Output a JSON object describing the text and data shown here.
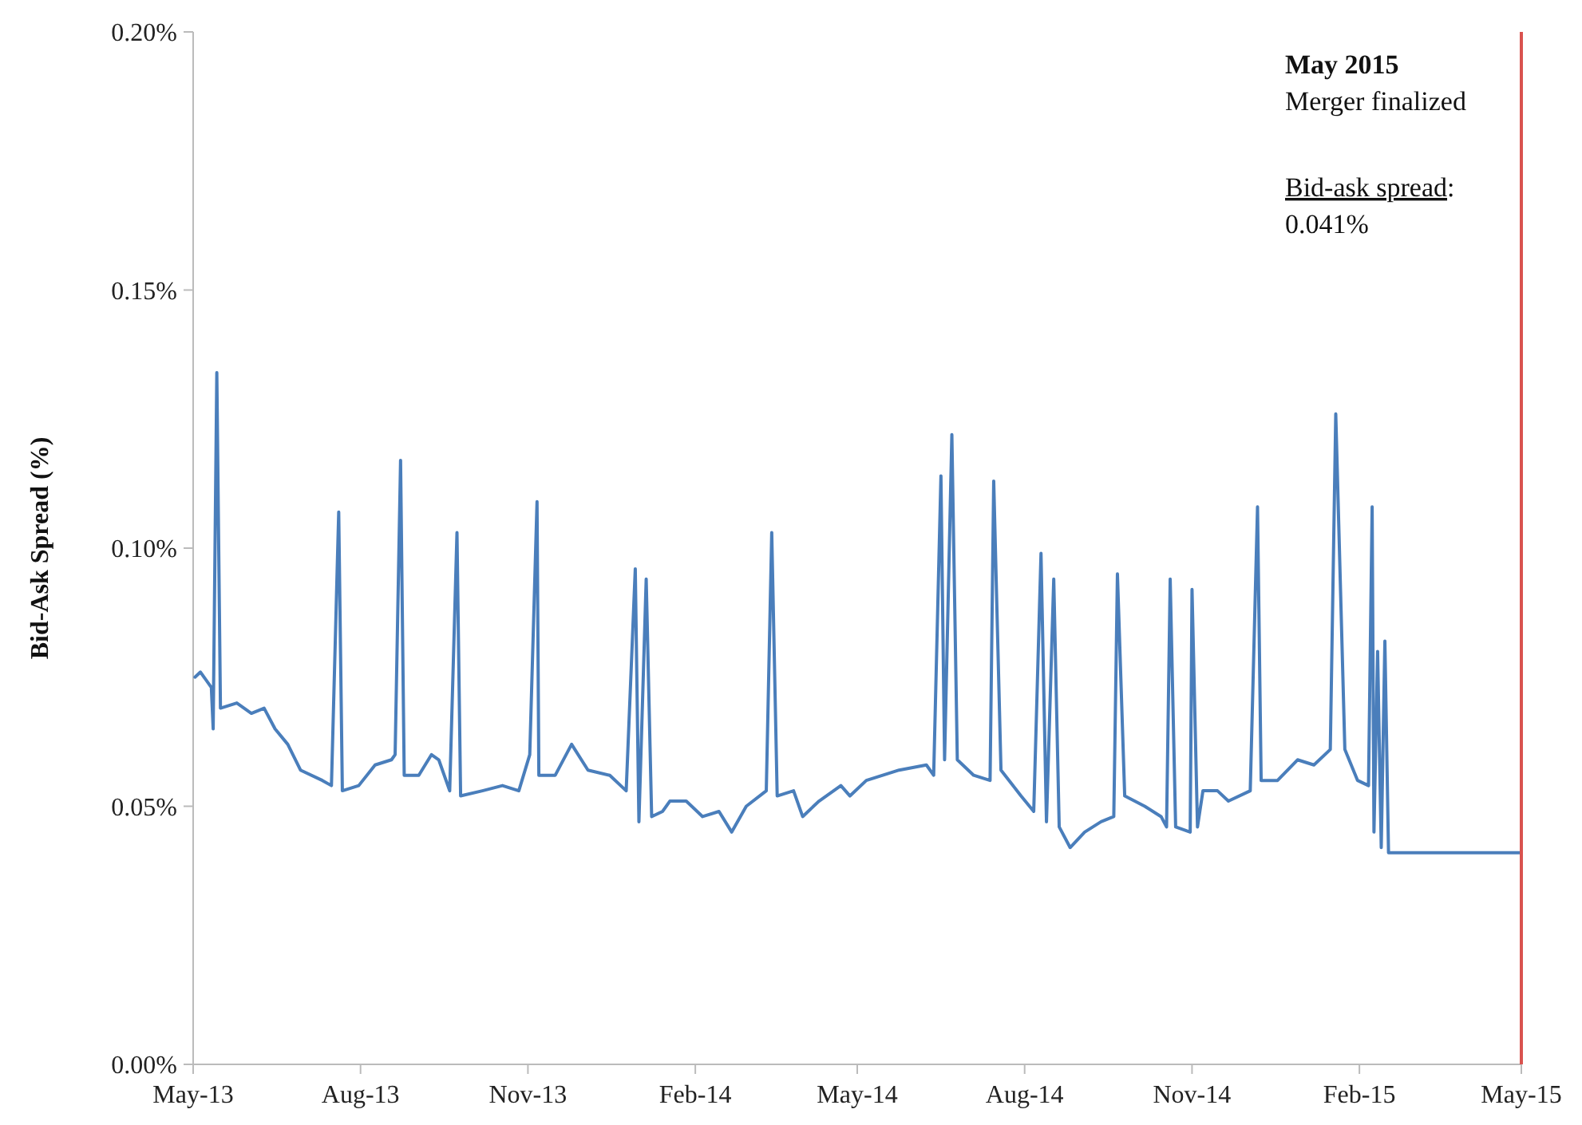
{
  "chart_data": {
    "type": "line",
    "ylabel": "Bid-Ask Spread (%)",
    "x": [
      "2013-05-02",
      "2013-05-05",
      "2013-05-11",
      "2013-05-12",
      "2013-05-14",
      "2013-05-16",
      "2013-05-25",
      "2013-06-02",
      "2013-06-09",
      "2013-06-15",
      "2013-06-22",
      "2013-06-29",
      "2013-07-11",
      "2013-07-16",
      "2013-07-20",
      "2013-07-22",
      "2013-07-31",
      "2013-08-09",
      "2013-08-18",
      "2013-08-20",
      "2013-08-23",
      "2013-08-25",
      "2013-09-02",
      "2013-09-09",
      "2013-09-13",
      "2013-09-19",
      "2013-09-23",
      "2013-09-25",
      "2013-10-07",
      "2013-10-18",
      "2013-10-27",
      "2013-11-02",
      "2013-11-06",
      "2013-11-07",
      "2013-11-16",
      "2013-11-25",
      "2013-12-04",
      "2013-12-16",
      "2013-12-25",
      "2013-12-30",
      "2014-01-01",
      "2014-01-05",
      "2014-01-08",
      "2014-01-14",
      "2014-01-18",
      "2014-01-27",
      "2014-02-05",
      "2014-02-14",
      "2014-02-21",
      "2014-03-01",
      "2014-03-12",
      "2014-03-15",
      "2014-03-18",
      "2014-03-27",
      "2014-04-01",
      "2014-04-10",
      "2014-04-22",
      "2014-04-27",
      "2014-05-06",
      "2014-05-15",
      "2014-05-24",
      "2014-06-08",
      "2014-06-12",
      "2014-06-16",
      "2014-06-18",
      "2014-06-22",
      "2014-06-25",
      "2014-07-04",
      "2014-07-13",
      "2014-07-15",
      "2014-07-19",
      "2014-07-30",
      "2014-08-06",
      "2014-08-10",
      "2014-08-13",
      "2014-08-17",
      "2014-08-20",
      "2014-08-26",
      "2014-09-03",
      "2014-09-12",
      "2014-09-19",
      "2014-09-21",
      "2014-09-25",
      "2014-10-06",
      "2014-10-15",
      "2014-10-18",
      "2014-10-20",
      "2014-10-23",
      "2014-10-31",
      "2014-11-01",
      "2014-11-04",
      "2014-11-07",
      "2014-11-15",
      "2014-11-21",
      "2014-12-03",
      "2014-12-07",
      "2014-12-09",
      "2014-12-18",
      "2014-12-29",
      "2015-01-07",
      "2015-01-16",
      "2015-01-19",
      "2015-01-24",
      "2015-01-31",
      "2015-02-06",
      "2015-02-08",
      "2015-02-09",
      "2015-02-11",
      "2015-02-13",
      "2015-02-15",
      "2015-02-17",
      "2015-03-07",
      "2015-04-30"
    ],
    "series": [
      {
        "color": "#4a7ebb",
        "values": [
          0.075,
          0.076,
          0.073,
          0.065,
          0.134,
          0.069,
          0.07,
          0.068,
          0.069,
          0.065,
          0.062,
          0.057,
          0.055,
          0.054,
          0.107,
          0.053,
          0.054,
          0.058,
          0.059,
          0.06,
          0.117,
          0.056,
          0.056,
          0.06,
          0.059,
          0.053,
          0.103,
          0.052,
          0.053,
          0.054,
          0.053,
          0.06,
          0.109,
          0.056,
          0.056,
          0.062,
          0.057,
          0.056,
          0.053,
          0.096,
          0.047,
          0.094,
          0.048,
          0.049,
          0.051,
          0.051,
          0.048,
          0.049,
          0.045,
          0.05,
          0.053,
          0.103,
          0.052,
          0.053,
          0.048,
          0.051,
          0.054,
          0.052,
          0.055,
          0.056,
          0.057,
          0.058,
          0.056,
          0.114,
          0.059,
          0.122,
          0.059,
          0.056,
          0.055,
          0.113,
          0.057,
          0.052,
          0.049,
          0.099,
          0.047,
          0.094,
          0.046,
          0.042,
          0.045,
          0.047,
          0.048,
          0.095,
          0.052,
          0.05,
          0.048,
          0.046,
          0.094,
          0.046,
          0.045,
          0.092,
          0.046,
          0.053,
          0.053,
          0.051,
          0.053,
          0.108,
          0.055,
          0.055,
          0.059,
          0.058,
          0.061,
          0.126,
          0.061,
          0.055,
          0.054,
          0.108,
          0.045,
          0.08,
          0.042,
          0.082,
          0.041,
          0.041,
          0.041
        ]
      }
    ],
    "xlim": [
      "2013-05-01",
      "2015-05-01"
    ],
    "xticks": [
      {
        "value": "2013-05-01",
        "label": "May-13"
      },
      {
        "value": "2013-08-01",
        "label": "Aug-13"
      },
      {
        "value": "2013-11-01",
        "label": "Nov-13"
      },
      {
        "value": "2014-02-01",
        "label": "Feb-14"
      },
      {
        "value": "2014-05-01",
        "label": "May-14"
      },
      {
        "value": "2014-08-01",
        "label": "Aug-14"
      },
      {
        "value": "2014-11-01",
        "label": "Nov-14"
      },
      {
        "value": "2015-02-01",
        "label": "Feb-15"
      },
      {
        "value": "2015-05-01",
        "label": "May-15"
      }
    ],
    "ylim": [
      0,
      0.2
    ],
    "yticks": [
      {
        "value": 0,
        "label": "0.00%"
      },
      {
        "value": 0.05,
        "label": "0.05%"
      },
      {
        "value": 0.1,
        "label": "0.10%"
      },
      {
        "value": 0.15,
        "label": "0.15%"
      },
      {
        "value": 0.2,
        "label": "0.20%"
      }
    ],
    "ref_lines": [
      {
        "axis": "x",
        "value": "2015-05-01",
        "color": "#d9534f"
      }
    ],
    "annotations": [
      "May 2015",
      "Merger finalized",
      "Bid-ask spread:",
      "0.041%"
    ],
    "grid": false,
    "marker": "none",
    "line_style": "solid"
  }
}
